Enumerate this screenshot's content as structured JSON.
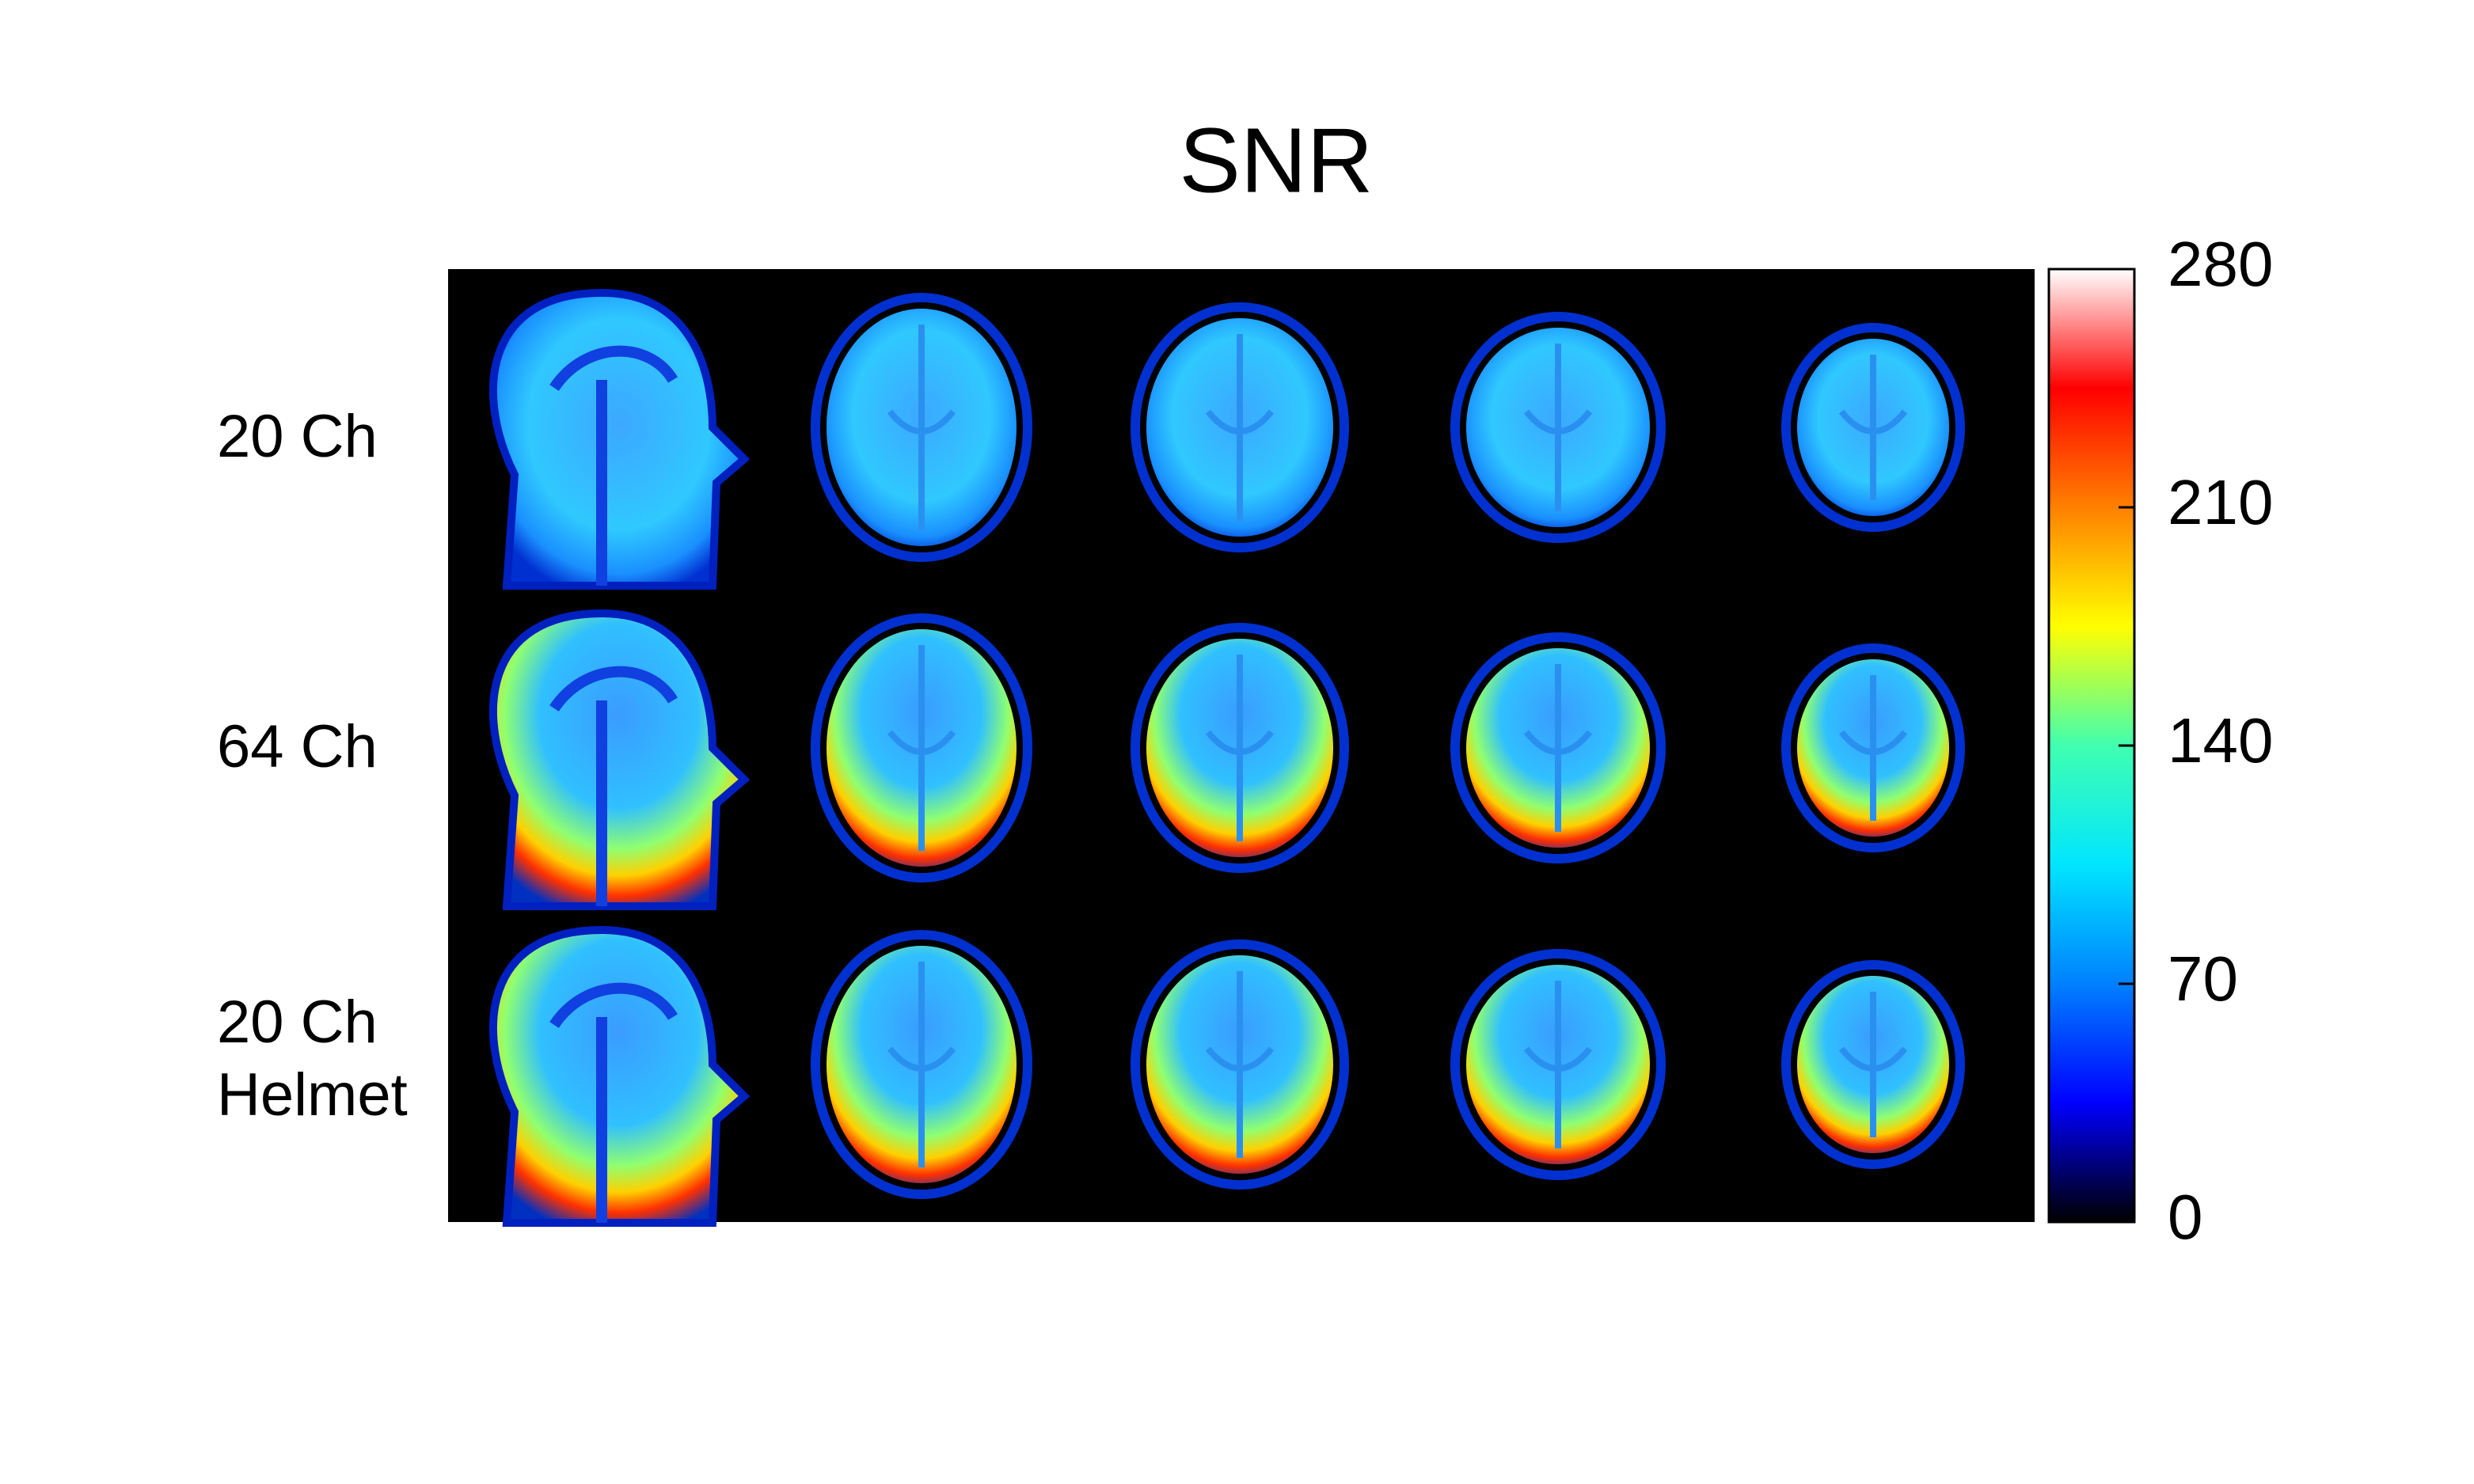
{
  "chart_data": {
    "type": "heatmap",
    "title": "SNR",
    "row_labels": [
      "20 Ch",
      "64 Ch",
      "20 Ch\nHelmet"
    ],
    "clim": [
      0,
      280
    ],
    "ticks": [
      0,
      70,
      140,
      210,
      280
    ],
    "colormap": [
      "#000000",
      "#0000ff",
      "#0080ff",
      "#00e6ff",
      "#40ffb0",
      "#ffff00",
      "#ff8000",
      "#ff0000",
      "#ffffff"
    ]
  }
}
